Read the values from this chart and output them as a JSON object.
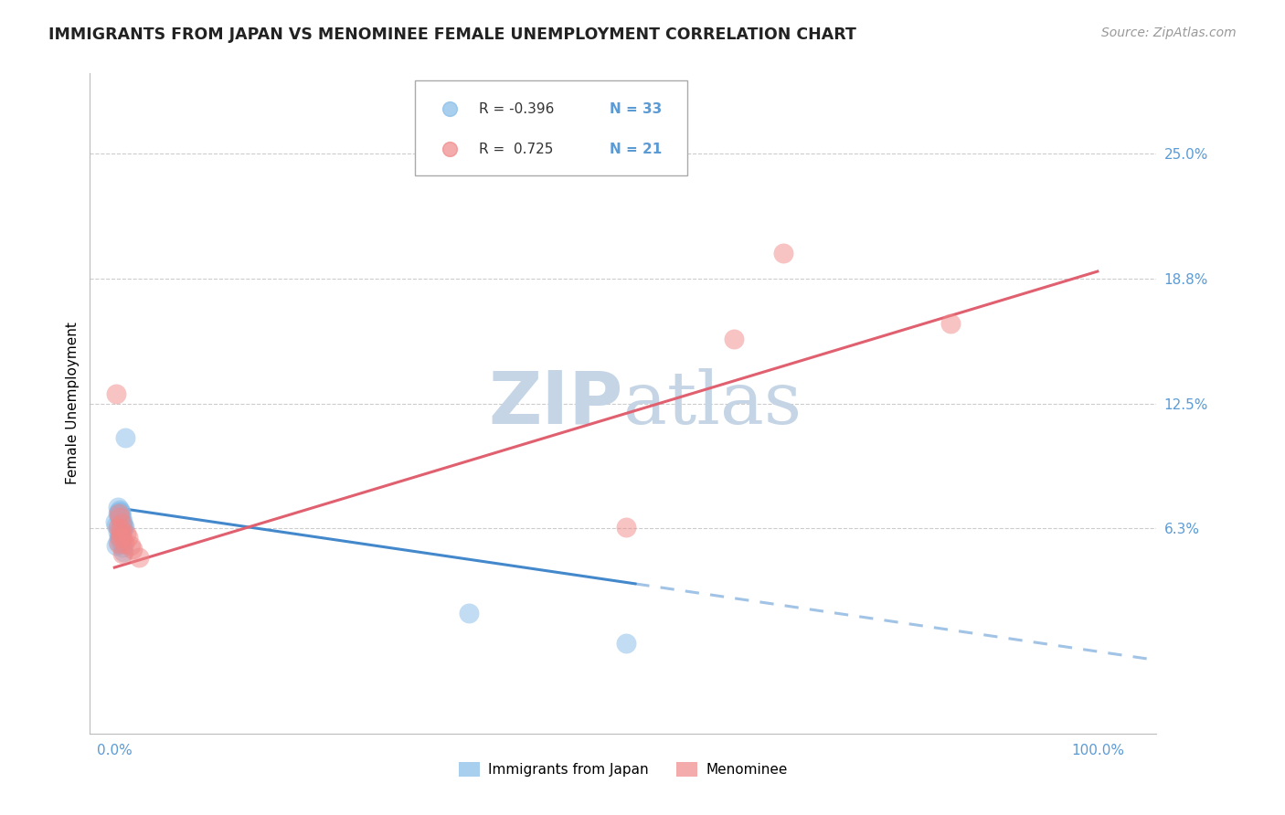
{
  "title": "IMMIGRANTS FROM JAPAN VS MENOMINEE FEMALE UNEMPLOYMENT CORRELATION CHART",
  "source": "Source: ZipAtlas.com",
  "ylabel": "Female Unemployment",
  "ymin": -0.04,
  "ymax": 0.29,
  "xmin": -0.025,
  "xmax": 1.06,
  "blue_scatter_x": [
    0.003,
    0.004,
    0.005,
    0.006,
    0.007,
    0.008,
    0.002,
    0.001,
    0.004,
    0.003,
    0.005,
    0.006,
    0.007,
    0.008,
    0.009,
    0.01,
    0.011,
    0.004,
    0.003,
    0.005,
    0.006,
    0.007,
    0.008,
    0.009,
    0.006,
    0.005,
    0.004,
    0.003,
    0.002,
    0.008,
    0.006,
    0.36,
    0.52
  ],
  "blue_scatter_y": [
    0.073,
    0.071,
    0.068,
    0.067,
    0.065,
    0.063,
    0.064,
    0.066,
    0.069,
    0.07,
    0.072,
    0.071,
    0.068,
    0.066,
    0.064,
    0.063,
    0.108,
    0.063,
    0.061,
    0.059,
    0.057,
    0.055,
    0.053,
    0.051,
    0.062,
    0.06,
    0.058,
    0.056,
    0.054,
    0.062,
    0.07,
    0.02,
    0.005
  ],
  "pink_scatter_x": [
    0.003,
    0.004,
    0.005,
    0.006,
    0.007,
    0.008,
    0.002,
    0.004,
    0.005,
    0.006,
    0.008,
    0.01,
    0.012,
    0.014,
    0.016,
    0.018,
    0.025,
    0.52,
    0.63,
    0.68,
    0.85
  ],
  "pink_scatter_y": [
    0.063,
    0.055,
    0.058,
    0.06,
    0.065,
    0.05,
    0.13,
    0.07,
    0.068,
    0.062,
    0.058,
    0.055,
    0.06,
    0.058,
    0.054,
    0.052,
    0.048,
    0.063,
    0.157,
    0.2,
    0.165
  ],
  "blue_line_intercept": 0.073,
  "blue_line_slope": -0.072,
  "blue_line_solid_end": 0.53,
  "blue_line_end": 1.06,
  "pink_line_intercept": 0.043,
  "pink_line_slope": 0.148,
  "pink_line_end": 1.0,
  "R_blue": "-0.396",
  "N_blue": "33",
  "R_pink": "0.725",
  "N_pink": "21",
  "blue_color": "#85BBE8",
  "pink_color": "#F08888",
  "blue_line_color": "#4488CC",
  "pink_line_color": "#E06070",
  "axis_label_color": "#5B9BD5",
  "grid_color": "#CCCCCC",
  "watermark_color": "#C5D5E5",
  "ytick_positions": [
    0.0625,
    0.125,
    0.1875,
    0.25
  ],
  "ytick_labels": [
    "6.3%",
    "12.5%",
    "18.8%",
    "25.0%"
  ],
  "title_fontsize": 12.5,
  "source_fontsize": 10,
  "legend_fontsize": 11,
  "tick_fontsize": 11,
  "ylabel_fontsize": 11
}
